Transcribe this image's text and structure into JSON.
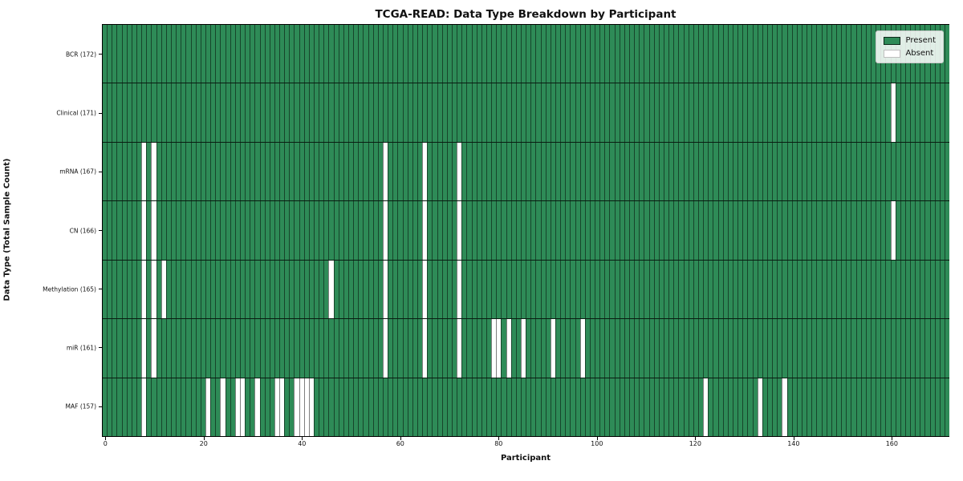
{
  "chart_data": {
    "type": "heatmap",
    "title": "TCGA-READ: Data Type Breakdown by Participant",
    "xlabel": "Participant",
    "ylabel": "Data Type (Total Sample Count)",
    "n_participants": 172,
    "x_ticks": [
      0,
      20,
      40,
      60,
      80,
      100,
      120,
      140,
      160
    ],
    "legend": [
      "Present",
      "Absent"
    ],
    "legend_position": "upper right",
    "colors": {
      "present": "#2e8b57",
      "absent": "#ffffff",
      "cell_edge": "rgba(0,0,0,0.5)"
    },
    "rows": [
      {
        "label": "BCR (172)",
        "data_type": "BCR",
        "present_count": 172,
        "absent_participants": []
      },
      {
        "label": "Clinical (171)",
        "data_type": "Clinical",
        "present_count": 171,
        "absent_participants": [
          160
        ]
      },
      {
        "label": "mRNA (167)",
        "data_type": "mRNA",
        "present_count": 167,
        "absent_participants": [
          8,
          10,
          57,
          65,
          72
        ]
      },
      {
        "label": "CN (166)",
        "data_type": "CN",
        "present_count": 166,
        "absent_participants": [
          8,
          10,
          57,
          65,
          72,
          160
        ]
      },
      {
        "label": "Methylation (165)",
        "data_type": "Methylation",
        "present_count": 165,
        "absent_participants": [
          8,
          10,
          12,
          46,
          57,
          65,
          72
        ]
      },
      {
        "label": "miR (161)",
        "data_type": "miR",
        "present_count": 161,
        "absent_participants": [
          8,
          10,
          57,
          65,
          72,
          79,
          80,
          82,
          85,
          91,
          97
        ]
      },
      {
        "label": "MAF (157)",
        "data_type": "MAF",
        "present_count": 157,
        "absent_participants": [
          8,
          21,
          24,
          27,
          28,
          31,
          35,
          36,
          39,
          40,
          41,
          42,
          122,
          133,
          138
        ]
      }
    ]
  }
}
